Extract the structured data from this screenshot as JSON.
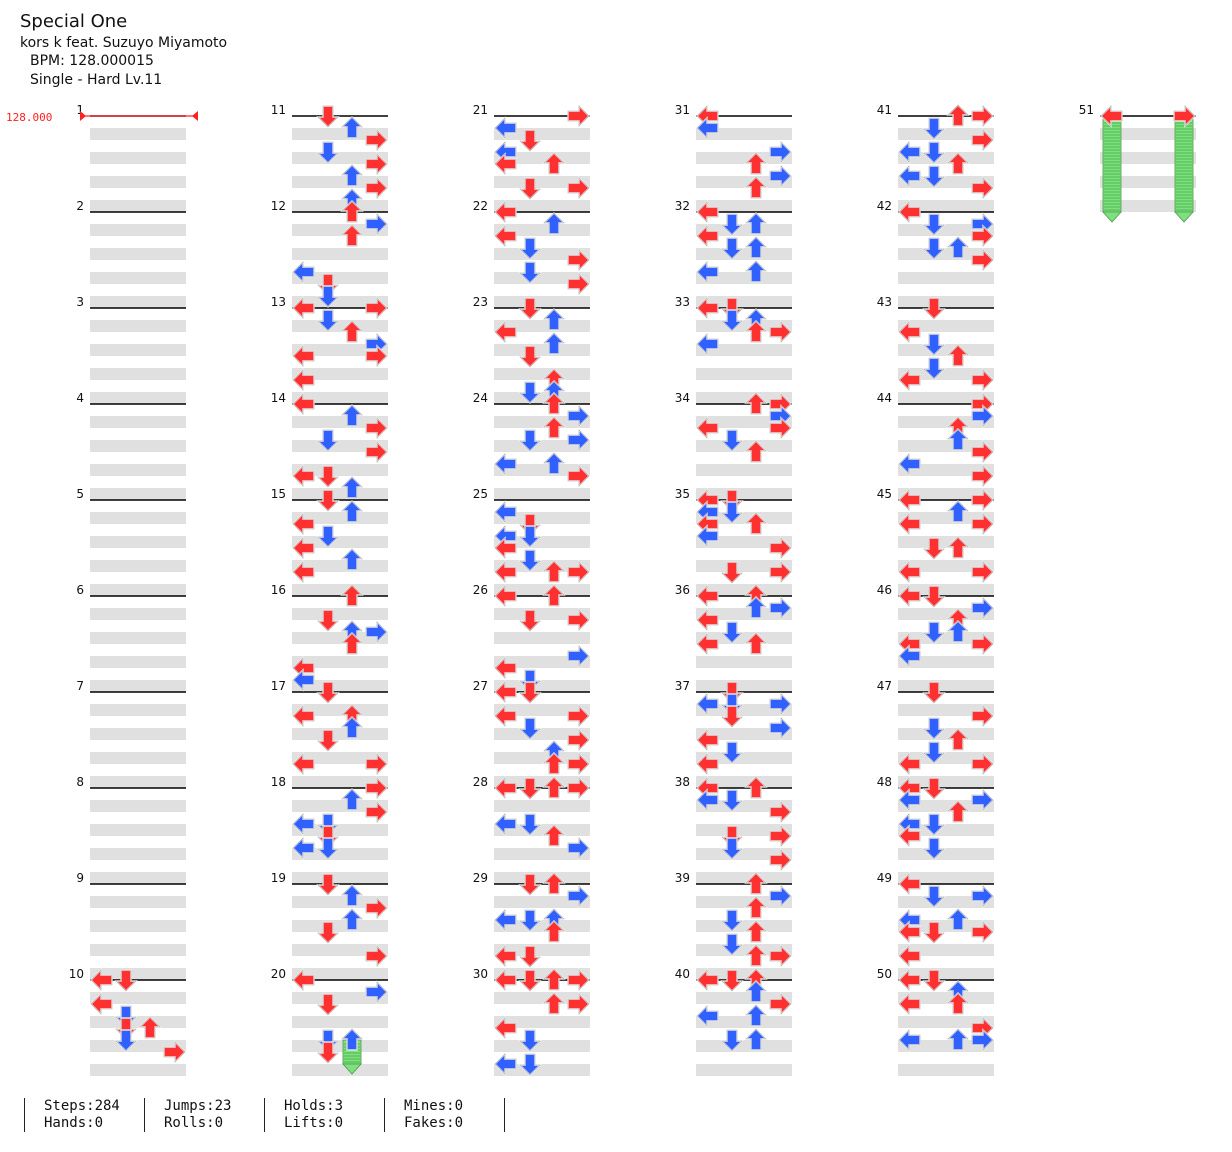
{
  "song": {
    "title": "Special One",
    "artist": "kors k feat. Suzuyo Miyamoto",
    "bpm_label": "BPM: 128.000015",
    "difficulty_label": "Single - Hard  Lv.11"
  },
  "bpm_marker": "128.000",
  "colors": {
    "quarter": "#ff3030",
    "eighth": "#3060ff",
    "sixteenth": "#ffe030",
    "hold": "#7ee07e",
    "band": "#e0e0e0",
    "bpm": "#ff2020"
  },
  "measures": {
    "first": 1,
    "last": 51
  },
  "columns_per_measure": 4,
  "stats": {
    "steps": "Steps:284",
    "hands": "Hands:0",
    "jumps": "Jumps:23",
    "rolls": "Rolls:0",
    "holds": "Holds:3",
    "lifts": "Lifts:0",
    "mines": "Mines:0",
    "fakes": "Fakes:0"
  },
  "notes": [
    [
      10,
      0,
      0
    ],
    [
      10,
      0,
      2
    ],
    [
      10,
      1,
      0
    ],
    [
      10,
      1,
      3
    ],
    [
      10,
      1,
      4
    ],
    [
      10,
      1,
      5
    ],
    [
      10,
      2,
      4
    ],
    [
      10,
      3,
      6
    ],
    [
      11,
      1,
      0
    ],
    [
      11,
      2,
      1
    ],
    [
      11,
      3,
      2
    ],
    [
      11,
      1,
      3
    ],
    [
      11,
      3,
      4
    ],
    [
      11,
      2,
      5
    ],
    [
      11,
      3,
      6
    ],
    [
      11,
      2,
      7
    ],
    [
      12,
      2,
      0
    ],
    [
      12,
      3,
      1
    ],
    [
      12,
      2,
      2
    ],
    [
      12,
      0,
      5
    ],
    [
      12,
      1,
      6
    ],
    [
      12,
      1,
      7
    ],
    [
      13,
      0,
      0
    ],
    [
      13,
      3,
      0
    ],
    [
      13,
      1,
      1
    ],
    [
      13,
      2,
      2
    ],
    [
      13,
      3,
      3
    ],
    [
      13,
      0,
      4
    ],
    [
      13,
      3,
      4
    ],
    [
      13,
      0,
      6
    ],
    [
      14,
      0,
      0
    ],
    [
      14,
      2,
      1
    ],
    [
      14,
      3,
      2
    ],
    [
      14,
      1,
      3
    ],
    [
      14,
      3,
      4
    ],
    [
      14,
      0,
      6
    ],
    [
      14,
      1,
      6
    ],
    [
      14,
      2,
      7
    ],
    [
      15,
      1,
      0
    ],
    [
      15,
      2,
      1
    ],
    [
      15,
      0,
      2
    ],
    [
      15,
      1,
      3
    ],
    [
      15,
      0,
      4
    ],
    [
      15,
      2,
      5
    ],
    [
      15,
      0,
      6
    ],
    [
      16,
      2,
      0
    ],
    [
      16,
      1,
      2
    ],
    [
      16,
      2,
      3
    ],
    [
      16,
      3,
      3
    ],
    [
      16,
      2,
      4
    ],
    [
      16,
      0,
      6
    ],
    [
      16,
      0,
      7
    ],
    [
      17,
      1,
      0
    ],
    [
      17,
      0,
      2
    ],
    [
      17,
      2,
      2
    ],
    [
      17,
      2,
      3
    ],
    [
      17,
      1,
      4
    ],
    [
      17,
      0,
      6
    ],
    [
      17,
      3,
      6
    ],
    [
      18,
      3,
      0
    ],
    [
      18,
      2,
      1
    ],
    [
      18,
      3,
      2
    ],
    [
      18,
      0,
      3
    ],
    [
      18,
      1,
      3
    ],
    [
      18,
      1,
      4
    ],
    [
      18,
      0,
      5
    ],
    [
      18,
      1,
      5
    ],
    [
      19,
      1,
      0
    ],
    [
      19,
      2,
      1
    ],
    [
      19,
      3,
      2
    ],
    [
      19,
      2,
      3
    ],
    [
      19,
      1,
      4
    ],
    [
      19,
      3,
      6
    ],
    [
      20,
      0,
      0
    ],
    [
      20,
      3,
      1
    ],
    [
      20,
      1,
      2
    ],
    [
      20,
      1,
      5
    ],
    [
      20,
      1,
      6
    ],
    [
      21,
      3,
      0
    ],
    [
      21,
      0,
      1
    ],
    [
      21,
      1,
      2
    ],
    [
      21,
      0,
      3
    ],
    [
      21,
      0,
      4
    ],
    [
      21,
      2,
      4
    ],
    [
      21,
      1,
      6
    ],
    [
      21,
      3,
      6
    ],
    [
      22,
      0,
      0
    ],
    [
      22,
      2,
      1
    ],
    [
      22,
      0,
      2
    ],
    [
      22,
      1,
      3
    ],
    [
      22,
      3,
      4
    ],
    [
      22,
      1,
      5
    ],
    [
      22,
      3,
      6
    ],
    [
      23,
      1,
      0
    ],
    [
      23,
      2,
      1
    ],
    [
      23,
      0,
      2
    ],
    [
      23,
      2,
      3
    ],
    [
      23,
      1,
      4
    ],
    [
      23,
      2,
      6
    ],
    [
      23,
      1,
      7
    ],
    [
      23,
      2,
      7
    ],
    [
      24,
      2,
      0
    ],
    [
      24,
      3,
      1
    ],
    [
      24,
      2,
      2
    ],
    [
      24,
      1,
      3
    ],
    [
      24,
      3,
      3
    ],
    [
      24,
      0,
      5
    ],
    [
      24,
      2,
      5
    ],
    [
      24,
      3,
      6
    ],
    [
      25,
      0,
      1
    ],
    [
      25,
      1,
      2
    ],
    [
      25,
      0,
      3
    ],
    [
      25,
      1,
      3
    ],
    [
      25,
      0,
      4
    ],
    [
      25,
      1,
      5
    ],
    [
      25,
      0,
      6
    ],
    [
      25,
      2,
      6
    ],
    [
      25,
      3,
      6
    ],
    [
      26,
      0,
      0
    ],
    [
      26,
      2,
      0
    ],
    [
      26,
      1,
      2
    ],
    [
      26,
      3,
      2
    ],
    [
      26,
      3,
      5
    ],
    [
      26,
      0,
      6
    ],
    [
      26,
      1,
      7
    ],
    [
      27,
      0,
      0
    ],
    [
      27,
      1,
      0
    ],
    [
      27,
      0,
      2
    ],
    [
      27,
      3,
      2
    ],
    [
      27,
      1,
      3
    ],
    [
      27,
      3,
      4
    ],
    [
      27,
      2,
      5
    ],
    [
      27,
      2,
      6
    ],
    [
      27,
      3,
      6
    ],
    [
      28,
      0,
      0
    ],
    [
      28,
      1,
      0
    ],
    [
      28,
      2,
      0
    ],
    [
      28,
      3,
      0
    ],
    [
      28,
      0,
      3
    ],
    [
      28,
      1,
      3
    ],
    [
      28,
      2,
      4
    ],
    [
      28,
      3,
      5
    ],
    [
      29,
      1,
      0
    ],
    [
      29,
      2,
      0
    ],
    [
      29,
      3,
      1
    ],
    [
      29,
      0,
      3
    ],
    [
      29,
      1,
      3
    ],
    [
      29,
      2,
      3
    ],
    [
      29,
      2,
      4
    ],
    [
      29,
      0,
      6
    ],
    [
      29,
      1,
      6
    ],
    [
      30,
      0,
      0
    ],
    [
      30,
      1,
      0
    ],
    [
      30,
      2,
      0
    ],
    [
      30,
      3,
      0
    ],
    [
      30,
      2,
      2
    ],
    [
      30,
      3,
      2
    ],
    [
      30,
      0,
      4
    ],
    [
      30,
      1,
      5
    ],
    [
      30,
      0,
      7
    ],
    [
      30,
      1,
      7
    ]
  ],
  "holds_data": [
    [
      20,
      2,
      5,
      7
    ]
  ],
  "notes_right": [
    [
      31,
      0,
      0
    ],
    [
      31,
      0,
      1
    ],
    [
      31,
      3,
      3
    ],
    [
      31,
      2,
      4
    ],
    [
      31,
      3,
      5
    ],
    [
      31,
      2,
      6
    ],
    [
      32,
      0,
      0
    ],
    [
      32,
      1,
      1
    ],
    [
      32,
      2,
      1
    ],
    [
      32,
      0,
      2
    ],
    [
      32,
      1,
      3
    ],
    [
      32,
      2,
      3
    ],
    [
      32,
      0,
      5
    ],
    [
      32,
      2,
      5
    ],
    [
      33,
      0,
      0
    ],
    [
      33,
      1,
      0
    ],
    [
      33,
      1,
      1
    ],
    [
      33,
      2,
      1
    ],
    [
      33,
      2,
      2
    ],
    [
      33,
      3,
      2
    ],
    [
      33,
      0,
      3
    ],
    [
      34,
      2,
      0
    ],
    [
      34,
      3,
      0
    ],
    [
      34,
      3,
      1
    ],
    [
      34,
      0,
      2
    ],
    [
      34,
      3,
      2
    ],
    [
      34,
      1,
      3
    ],
    [
      34,
      2,
      4
    ],
    [
      35,
      0,
      0
    ],
    [
      35,
      1,
      0
    ],
    [
      35,
      0,
      1
    ],
    [
      35,
      1,
      1
    ],
    [
      35,
      0,
      2
    ],
    [
      35,
      2,
      2
    ],
    [
      35,
      0,
      3
    ],
    [
      35,
      3,
      4
    ],
    [
      35,
      1,
      6
    ],
    [
      35,
      3,
      6
    ],
    [
      36,
      0,
      0
    ],
    [
      36,
      2,
      0
    ],
    [
      36,
      2,
      1
    ],
    [
      36,
      3,
      1
    ],
    [
      36,
      0,
      2
    ],
    [
      36,
      1,
      3
    ],
    [
      36,
      0,
      4
    ],
    [
      36,
      2,
      4
    ],
    [
      37,
      1,
      0
    ],
    [
      37,
      0,
      1
    ],
    [
      37,
      1,
      1
    ],
    [
      37,
      3,
      1
    ],
    [
      37,
      1,
      2
    ],
    [
      37,
      3,
      3
    ],
    [
      37,
      0,
      4
    ],
    [
      37,
      1,
      5
    ],
    [
      37,
      0,
      6
    ],
    [
      38,
      0,
      0
    ],
    [
      38,
      2,
      0
    ],
    [
      38,
      0,
      1
    ],
    [
      38,
      1,
      1
    ],
    [
      38,
      3,
      2
    ],
    [
      38,
      1,
      4
    ],
    [
      38,
      3,
      4
    ],
    [
      38,
      1,
      5
    ],
    [
      38,
      3,
      6
    ],
    [
      39,
      2,
      0
    ],
    [
      39,
      3,
      1
    ],
    [
      39,
      2,
      2
    ],
    [
      39,
      1,
      3
    ],
    [
      39,
      2,
      4
    ],
    [
      39,
      1,
      5
    ],
    [
      39,
      2,
      6
    ],
    [
      39,
      3,
      6
    ],
    [
      40,
      0,
      0
    ],
    [
      40,
      1,
      0
    ],
    [
      40,
      2,
      0
    ],
    [
      40,
      2,
      1
    ],
    [
      40,
      3,
      2
    ],
    [
      40,
      0,
      3
    ],
    [
      40,
      2,
      3
    ],
    [
      40,
      1,
      5
    ],
    [
      40,
      2,
      5
    ],
    [
      41,
      2,
      0
    ],
    [
      41,
      3,
      0
    ],
    [
      41,
      1,
      1
    ],
    [
      41,
      3,
      2
    ],
    [
      41,
      0,
      3
    ],
    [
      41,
      1,
      3
    ],
    [
      41,
      2,
      4
    ],
    [
      41,
      0,
      5
    ],
    [
      41,
      1,
      5
    ],
    [
      41,
      3,
      6
    ],
    [
      42,
      0,
      0
    ],
    [
      42,
      1,
      1
    ],
    [
      42,
      3,
      1
    ],
    [
      42,
      3,
      2
    ],
    [
      42,
      1,
      3
    ],
    [
      42,
      2,
      3
    ],
    [
      42,
      3,
      4
    ],
    [
      43,
      1,
      0
    ],
    [
      43,
      0,
      2
    ],
    [
      43,
      1,
      3
    ],
    [
      43,
      2,
      4
    ],
    [
      43,
      1,
      5
    ],
    [
      43,
      0,
      6
    ],
    [
      43,
      3,
      6
    ],
    [
      44,
      3,
      0
    ],
    [
      44,
      3,
      1
    ],
    [
      44,
      2,
      2
    ],
    [
      44,
      2,
      3
    ],
    [
      44,
      3,
      4
    ],
    [
      44,
      0,
      5
    ],
    [
      44,
      3,
      6
    ],
    [
      45,
      0,
      0
    ],
    [
      45,
      3,
      0
    ],
    [
      45,
      2,
      1
    ],
    [
      45,
      0,
      2
    ],
    [
      45,
      3,
      2
    ],
    [
      45,
      1,
      4
    ],
    [
      45,
      2,
      4
    ],
    [
      45,
      0,
      6
    ],
    [
      45,
      3,
      6
    ],
    [
      46,
      0,
      0
    ],
    [
      46,
      1,
      0
    ],
    [
      46,
      3,
      1
    ],
    [
      46,
      2,
      2
    ],
    [
      46,
      1,
      3
    ],
    [
      46,
      2,
      3
    ],
    [
      46,
      0,
      4
    ],
    [
      46,
      3,
      4
    ],
    [
      46,
      0,
      5
    ],
    [
      47,
      1,
      0
    ],
    [
      47,
      3,
      2
    ],
    [
      47,
      1,
      3
    ],
    [
      47,
      2,
      4
    ],
    [
      47,
      1,
      5
    ],
    [
      47,
      0,
      6
    ],
    [
      47,
      3,
      6
    ],
    [
      48,
      0,
      0
    ],
    [
      48,
      1,
      0
    ],
    [
      48,
      0,
      1
    ],
    [
      48,
      3,
      1
    ],
    [
      48,
      2,
      2
    ],
    [
      48,
      0,
      3
    ],
    [
      48,
      1,
      3
    ],
    [
      48,
      0,
      4
    ],
    [
      48,
      1,
      5
    ],
    [
      49,
      0,
      0
    ],
    [
      49,
      1,
      1
    ],
    [
      49,
      3,
      1
    ],
    [
      49,
      0,
      3
    ],
    [
      49,
      2,
      3
    ],
    [
      49,
      0,
      4
    ],
    [
      49,
      1,
      4
    ],
    [
      49,
      3,
      4
    ],
    [
      49,
      0,
      6
    ],
    [
      50,
      0,
      0
    ],
    [
      50,
      1,
      0
    ],
    [
      50,
      2,
      1
    ],
    [
      50,
      0,
      2
    ],
    [
      50,
      2,
      2
    ],
    [
      50,
      3,
      4
    ],
    [
      50,
      0,
      5
    ],
    [
      50,
      2,
      5
    ],
    [
      50,
      3,
      5
    ]
  ],
  "holds_right": [
    [
      51,
      0,
      0,
      4
    ],
    [
      51,
      3,
      0,
      4
    ]
  ],
  "arrow_pairs": [
    [
      51,
      0,
      0
    ],
    [
      51,
      3,
      0
    ]
  ]
}
